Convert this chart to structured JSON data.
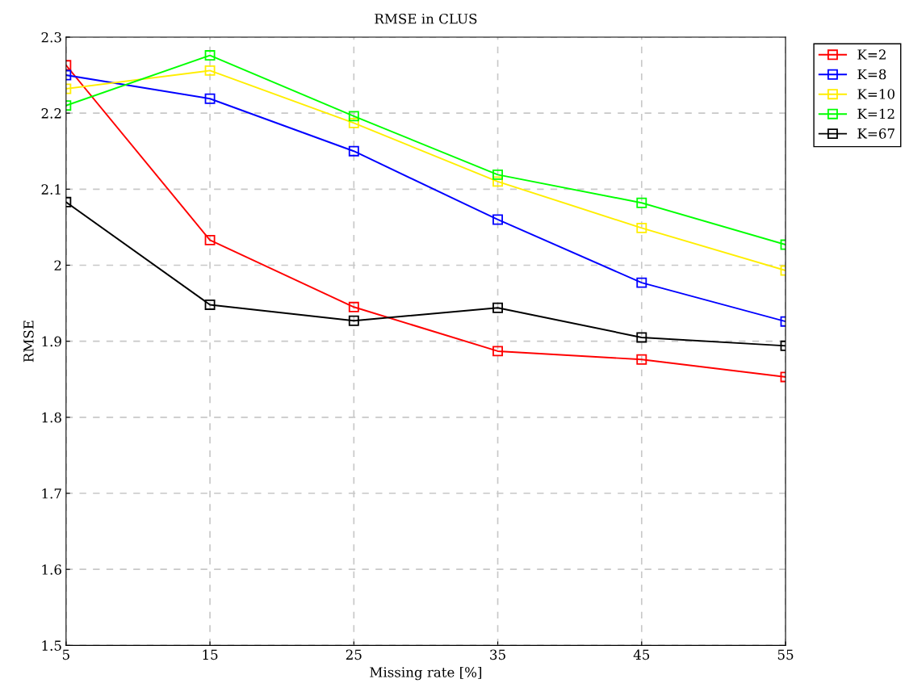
{
  "chart_data": {
    "type": "line",
    "title": "RMSE in CLUS",
    "xlabel": "Missing rate [%]",
    "ylabel": "RMSE",
    "x": [
      5,
      15,
      25,
      35,
      45,
      55
    ],
    "series": [
      {
        "name": "K=2",
        "color": "#ff0000",
        "values": [
          2.263,
          2.033,
          1.945,
          1.887,
          1.876,
          1.853
        ]
      },
      {
        "name": "K=8",
        "color": "#0000ff",
        "values": [
          2.25,
          2.219,
          2.15,
          2.06,
          1.977,
          1.926
        ]
      },
      {
        "name": "K=10",
        "color": "#ffee00",
        "values": [
          2.232,
          2.256,
          2.187,
          2.11,
          2.049,
          1.993
        ]
      },
      {
        "name": "K=12",
        "color": "#00ff00",
        "values": [
          2.21,
          2.276,
          2.196,
          2.119,
          2.082,
          2.027
        ]
      },
      {
        "name": "K=67",
        "color": "#000000",
        "values": [
          2.083,
          1.948,
          1.927,
          1.944,
          1.905,
          1.894
        ]
      }
    ],
    "xlim": [
      5,
      55
    ],
    "xticks": [
      5,
      15,
      25,
      35,
      45,
      55
    ],
    "ylim": [
      1.5,
      2.3
    ],
    "yticks": [
      1.5,
      1.6,
      1.7,
      1.8,
      1.9,
      2,
      2.1,
      2.2,
      2.3
    ],
    "grid": true,
    "legend": "top right",
    "marker": "square",
    "line_style": "solid"
  }
}
